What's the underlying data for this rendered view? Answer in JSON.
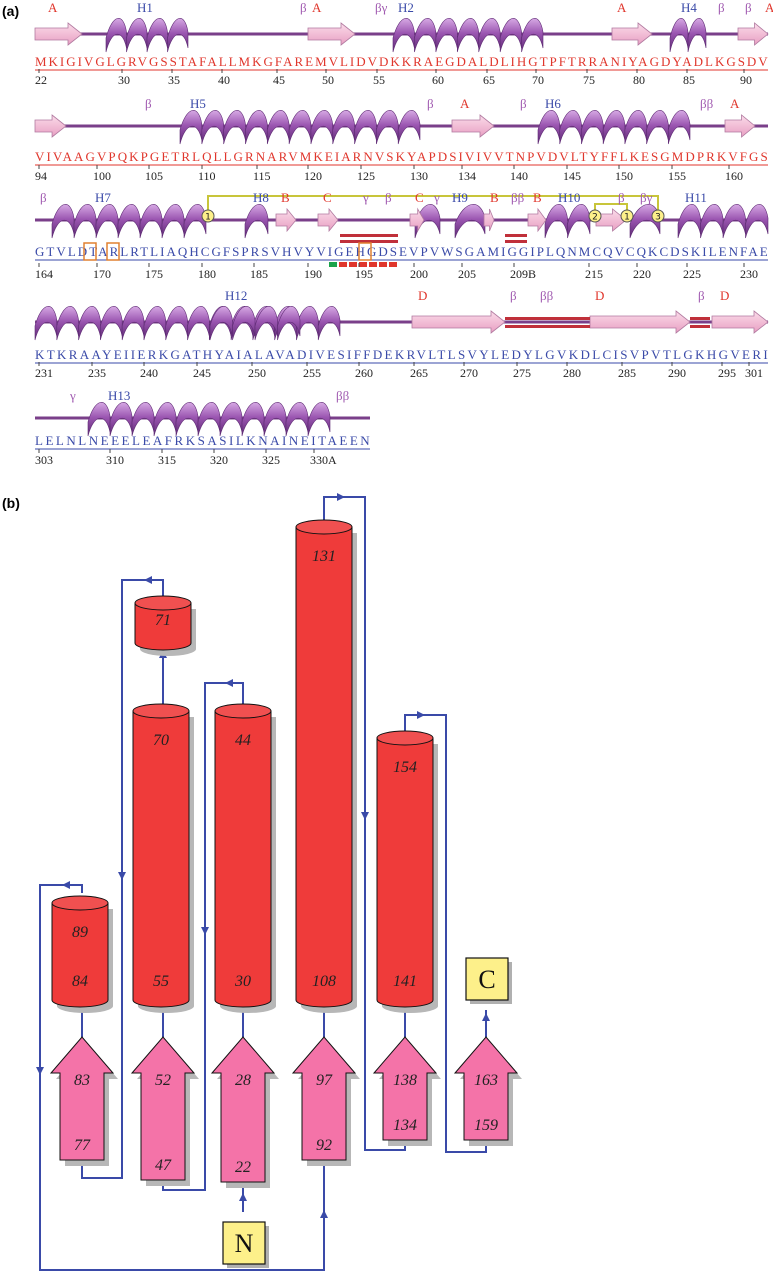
{
  "panels": {
    "a": "(a)",
    "b": "(b)"
  },
  "colors": {
    "helix": "#9a55b0",
    "strand": "#f2b3cf",
    "backbone": "#7a3f8a",
    "seq_red": "#e0362c",
    "seq_blue": "#3a4aa8",
    "cylinder": "#ef3b3a",
    "arrow_pink": "#f473a8",
    "connector": "#3a4aa8",
    "terminus": "#fdf08a",
    "disulfide": "#c8c53a"
  },
  "sequence_rows": [
    {
      "text": "MKIGIVGLGRVGSSTAFALLMKGFAREMVLIDVDKKRAEGDALDLIHGTPFTRRANIYAGDYADLKGSDV",
      "color": "red",
      "numbers": [
        "22",
        "30",
        "35",
        "40",
        "45",
        "50",
        "55",
        "60",
        "65",
        "70",
        "75",
        "80",
        "85",
        "90"
      ],
      "ss_labels": [
        {
          "text": "A",
          "color": "red"
        },
        {
          "text": "H1",
          "color": "blue"
        },
        {
          "text": "β",
          "color": "purple"
        },
        {
          "text": "A",
          "color": "red"
        },
        {
          "text": "βγ",
          "color": "purple"
        },
        {
          "text": "H2",
          "color": "blue"
        },
        {
          "text": "A",
          "color": "red"
        },
        {
          "text": "H4",
          "color": "blue"
        },
        {
          "text": "β",
          "color": "purple"
        },
        {
          "text": "β",
          "color": "purple"
        },
        {
          "text": "A",
          "color": "red"
        }
      ]
    },
    {
      "text": "VIVAAGVPQKPGETRLQLLGRNARVMKEIARNVSKYAPDSIVIVVTNPVDVLTYFFLKESGMDPRKVFGS",
      "color": "red",
      "numbers": [
        "94",
        "100",
        "105",
        "110",
        "115",
        "120",
        "125",
        "130",
        "134",
        "140",
        "145",
        "150",
        "155",
        "160"
      ],
      "ss_labels": [
        {
          "text": "β",
          "color": "purple"
        },
        {
          "text": "H5",
          "color": "blue"
        },
        {
          "text": "β",
          "color": "purple"
        },
        {
          "text": "A",
          "color": "red"
        },
        {
          "text": "β",
          "color": "purple"
        },
        {
          "text": "H6",
          "color": "blue"
        },
        {
          "text": "ββ",
          "color": "purple"
        },
        {
          "text": "A",
          "color": "red"
        }
      ]
    },
    {
      "text": "GTVLDTARLRTLIAQHCGFSPRSVHVYVIGEHGDSEVPVWSGAMIGGIPLQNMCQVCQKCDSKILENFAE",
      "color": "blue",
      "numbers": [
        "164",
        "170",
        "175",
        "180",
        "185",
        "190",
        "195",
        "200",
        "205",
        "209B",
        "215",
        "220",
        "225",
        "230"
      ],
      "ss_labels": [
        {
          "text": "β",
          "color": "purple"
        },
        {
          "text": "H7",
          "color": "blue"
        },
        {
          "text": "H8",
          "color": "blue"
        },
        {
          "text": "B",
          "color": "red"
        },
        {
          "text": "C",
          "color": "red"
        },
        {
          "text": "γ",
          "color": "purple"
        },
        {
          "text": "β",
          "color": "purple"
        },
        {
          "text": "C",
          "color": "red"
        },
        {
          "text": "γ",
          "color": "purple"
        },
        {
          "text": "H9",
          "color": "blue"
        },
        {
          "text": "B",
          "color": "red"
        },
        {
          "text": "ββ",
          "color": "purple"
        },
        {
          "text": "B",
          "color": "red"
        },
        {
          "text": "H10",
          "color": "blue"
        },
        {
          "text": "β",
          "color": "purple"
        },
        {
          "text": "βγ",
          "color": "purple"
        },
        {
          "text": "H11",
          "color": "blue"
        }
      ],
      "disulfide_marks": [
        "1",
        "2",
        "1",
        "3"
      ]
    },
    {
      "text": "KTKRAAYEIIERKGATHYAIALAVADIVESIFFDEKRVLTLSVYLEDYLGVKDLCISVPVTLGKHGVERI",
      "color": "blue",
      "numbers": [
        "231",
        "235",
        "240",
        "245",
        "250",
        "255",
        "260",
        "265",
        "270",
        "275",
        "280",
        "285",
        "290",
        "295",
        "301"
      ],
      "ss_labels": [
        {
          "text": "H12",
          "color": "blue"
        },
        {
          "text": "D",
          "color": "red"
        },
        {
          "text": "β",
          "color": "purple"
        },
        {
          "text": "ββ",
          "color": "purple"
        },
        {
          "text": "D",
          "color": "red"
        },
        {
          "text": "β",
          "color": "purple"
        },
        {
          "text": "D",
          "color": "red"
        }
      ]
    },
    {
      "text": "LELNLNEEELEAFRKSASILKNAINEITAEEN",
      "color": "blue",
      "numbers": [
        "303",
        "310",
        "315",
        "320",
        "325",
        "330A"
      ],
      "ss_labels": [
        {
          "text": "γ",
          "color": "purple"
        },
        {
          "text": "H13",
          "color": "blue"
        },
        {
          "text": "ββ",
          "color": "purple"
        }
      ]
    }
  ],
  "topology": {
    "helices": [
      {
        "top": "89",
        "bottom": "84"
      },
      {
        "top": "71",
        "bottom": ""
      },
      {
        "top": "70",
        "bottom": "55"
      },
      {
        "top": "44",
        "bottom": "30"
      },
      {
        "top": "131",
        "bottom": "108"
      },
      {
        "top": "154",
        "bottom": "141"
      }
    ],
    "strands": [
      {
        "top": "83",
        "bottom": "77"
      },
      {
        "top": "52",
        "bottom": "47"
      },
      {
        "top": "28",
        "bottom": "22"
      },
      {
        "top": "97",
        "bottom": "92"
      },
      {
        "top": "138",
        "bottom": "134"
      },
      {
        "top": "163",
        "bottom": "159"
      }
    ],
    "n_terminus": "N",
    "c_terminus": "C"
  }
}
